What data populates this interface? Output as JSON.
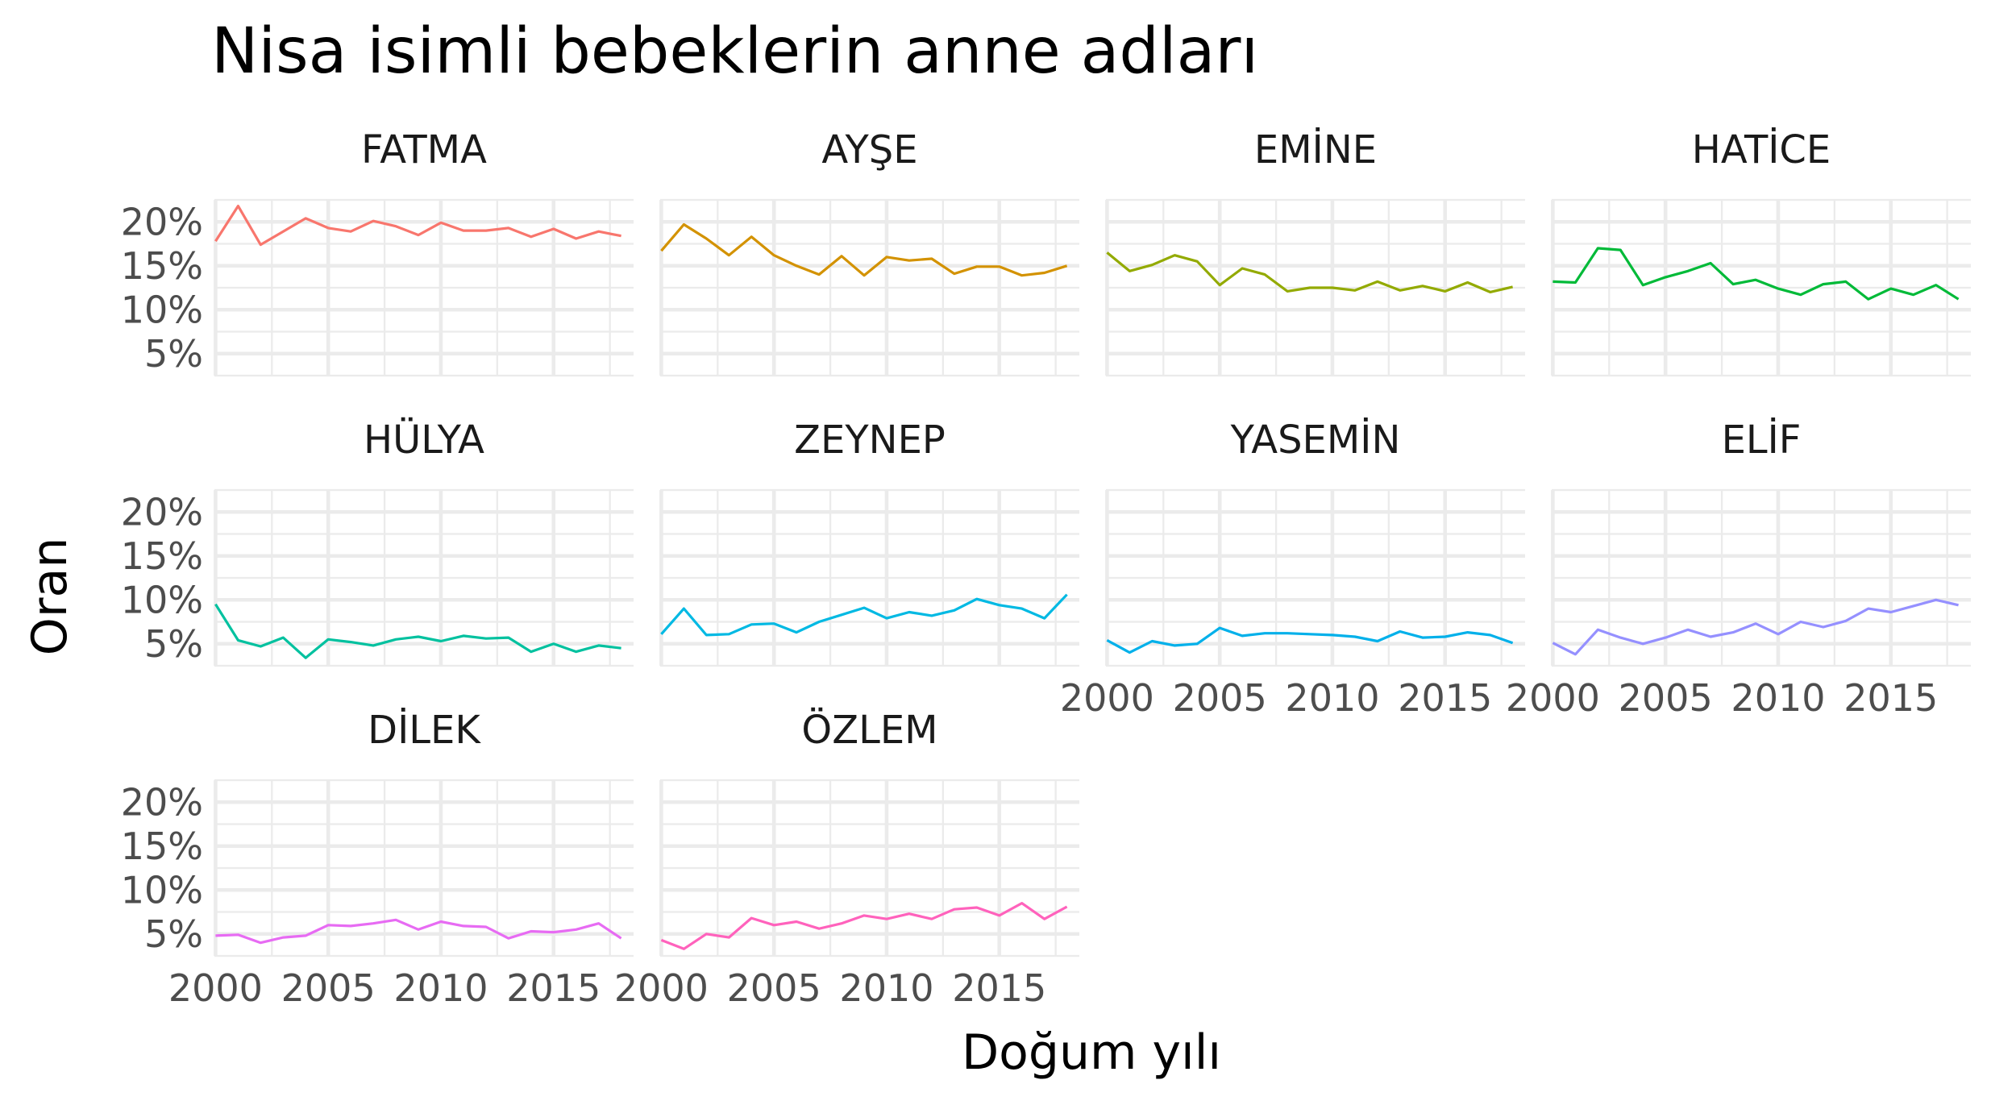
{
  "chart_data": {
    "type": "line",
    "title": "Nisa isimli bebeklerin anne adları",
    "xlabel": "Doğum yılı",
    "ylabel": "Oran",
    "facets": "4 columns, 3 rows",
    "x": [
      2000,
      2001,
      2002,
      2003,
      2004,
      2005,
      2006,
      2007,
      2008,
      2009,
      2010,
      2011,
      2012,
      2013,
      2014,
      2015,
      2016,
      2017,
      2018
    ],
    "xlim": [
      1999.95,
      2018.55
    ],
    "x_ticks": [
      2000,
      2005,
      2010,
      2015
    ],
    "x_tick_labels": [
      "2000",
      "2005",
      "2010",
      "2015"
    ],
    "ylim": [
      2.5,
      22.5
    ],
    "y_ticks": [
      5,
      10,
      15,
      20
    ],
    "y_tick_labels": [
      "5%",
      "10%",
      "15%",
      "20%"
    ],
    "grid": true,
    "legend": "none",
    "series": [
      {
        "name": "FATMA",
        "color": "#F8766D",
        "values": [
          17.8,
          21.8,
          17.4,
          18.9,
          20.4,
          19.3,
          18.9,
          20.1,
          19.5,
          18.5,
          19.9,
          19.0,
          19.0,
          19.3,
          18.3,
          19.2,
          18.1,
          18.9,
          18.4
        ]
      },
      {
        "name": "AYŞE",
        "color": "#D39200",
        "values": [
          16.7,
          19.7,
          18.1,
          16.2,
          18.3,
          16.2,
          15.0,
          14.0,
          16.1,
          13.9,
          16.0,
          15.6,
          15.8,
          14.1,
          14.9,
          14.9,
          13.9,
          14.2,
          15.0
        ]
      },
      {
        "name": "EMİNE",
        "color": "#93AA00",
        "values": [
          16.5,
          14.4,
          15.1,
          16.2,
          15.5,
          12.8,
          14.7,
          14.0,
          12.1,
          12.5,
          12.5,
          12.2,
          13.2,
          12.2,
          12.7,
          12.1,
          13.1,
          12.0,
          12.6
        ]
      },
      {
        "name": "HATİCE",
        "color": "#00BA38",
        "values": [
          13.2,
          13.1,
          17.0,
          16.8,
          12.8,
          13.7,
          14.4,
          15.3,
          12.9,
          13.4,
          12.4,
          11.7,
          12.9,
          13.2,
          11.2,
          12.4,
          11.7,
          12.8,
          11.2
        ]
      },
      {
        "name": "HÜLYA",
        "color": "#00C19F",
        "values": [
          9.5,
          5.4,
          4.7,
          5.7,
          3.4,
          5.5,
          5.2,
          4.8,
          5.5,
          5.8,
          5.3,
          5.9,
          5.6,
          5.7,
          4.1,
          5.0,
          4.1,
          4.8,
          4.5
        ]
      },
      {
        "name": "ZEYNEP",
        "color": "#00B9E3",
        "values": [
          6.1,
          9.0,
          6.0,
          6.1,
          7.2,
          7.3,
          6.3,
          7.5,
          8.3,
          9.1,
          7.9,
          8.6,
          8.2,
          8.8,
          10.1,
          9.4,
          9.0,
          7.9,
          10.6
        ],
        "color_note": "teal-blue"
      },
      {
        "name": "YASEMİN",
        "color": "#00B0EA",
        "values": [
          5.4,
          4.0,
          5.3,
          4.8,
          5.0,
          6.8,
          5.9,
          6.2,
          6.2,
          6.1,
          6.0,
          5.8,
          5.3,
          6.4,
          5.7,
          5.8,
          6.3,
          6.0,
          5.1
        ]
      },
      {
        "name": "ELİF",
        "color": "#9590FF",
        "values": [
          5.1,
          3.8,
          6.6,
          5.7,
          5.0,
          5.7,
          6.6,
          5.8,
          6.3,
          7.3,
          6.1,
          7.5,
          6.9,
          7.6,
          9.0,
          8.6,
          9.3,
          10.0,
          9.4
        ]
      },
      {
        "name": "DİLEK",
        "color": "#E76BF3",
        "values": [
          4.8,
          4.9,
          4.0,
          4.6,
          4.8,
          6.0,
          5.9,
          6.2,
          6.6,
          5.5,
          6.4,
          5.9,
          5.8,
          4.5,
          5.3,
          5.2,
          5.5,
          6.2,
          4.5
        ]
      },
      {
        "name": "ÖZLEM",
        "color": "#FF62BC",
        "values": [
          4.3,
          3.3,
          5.0,
          4.6,
          6.8,
          6.0,
          6.4,
          5.6,
          6.2,
          7.1,
          6.7,
          7.3,
          6.7,
          7.8,
          8.0,
          7.1,
          8.5,
          6.7,
          8.1
        ]
      }
    ]
  }
}
